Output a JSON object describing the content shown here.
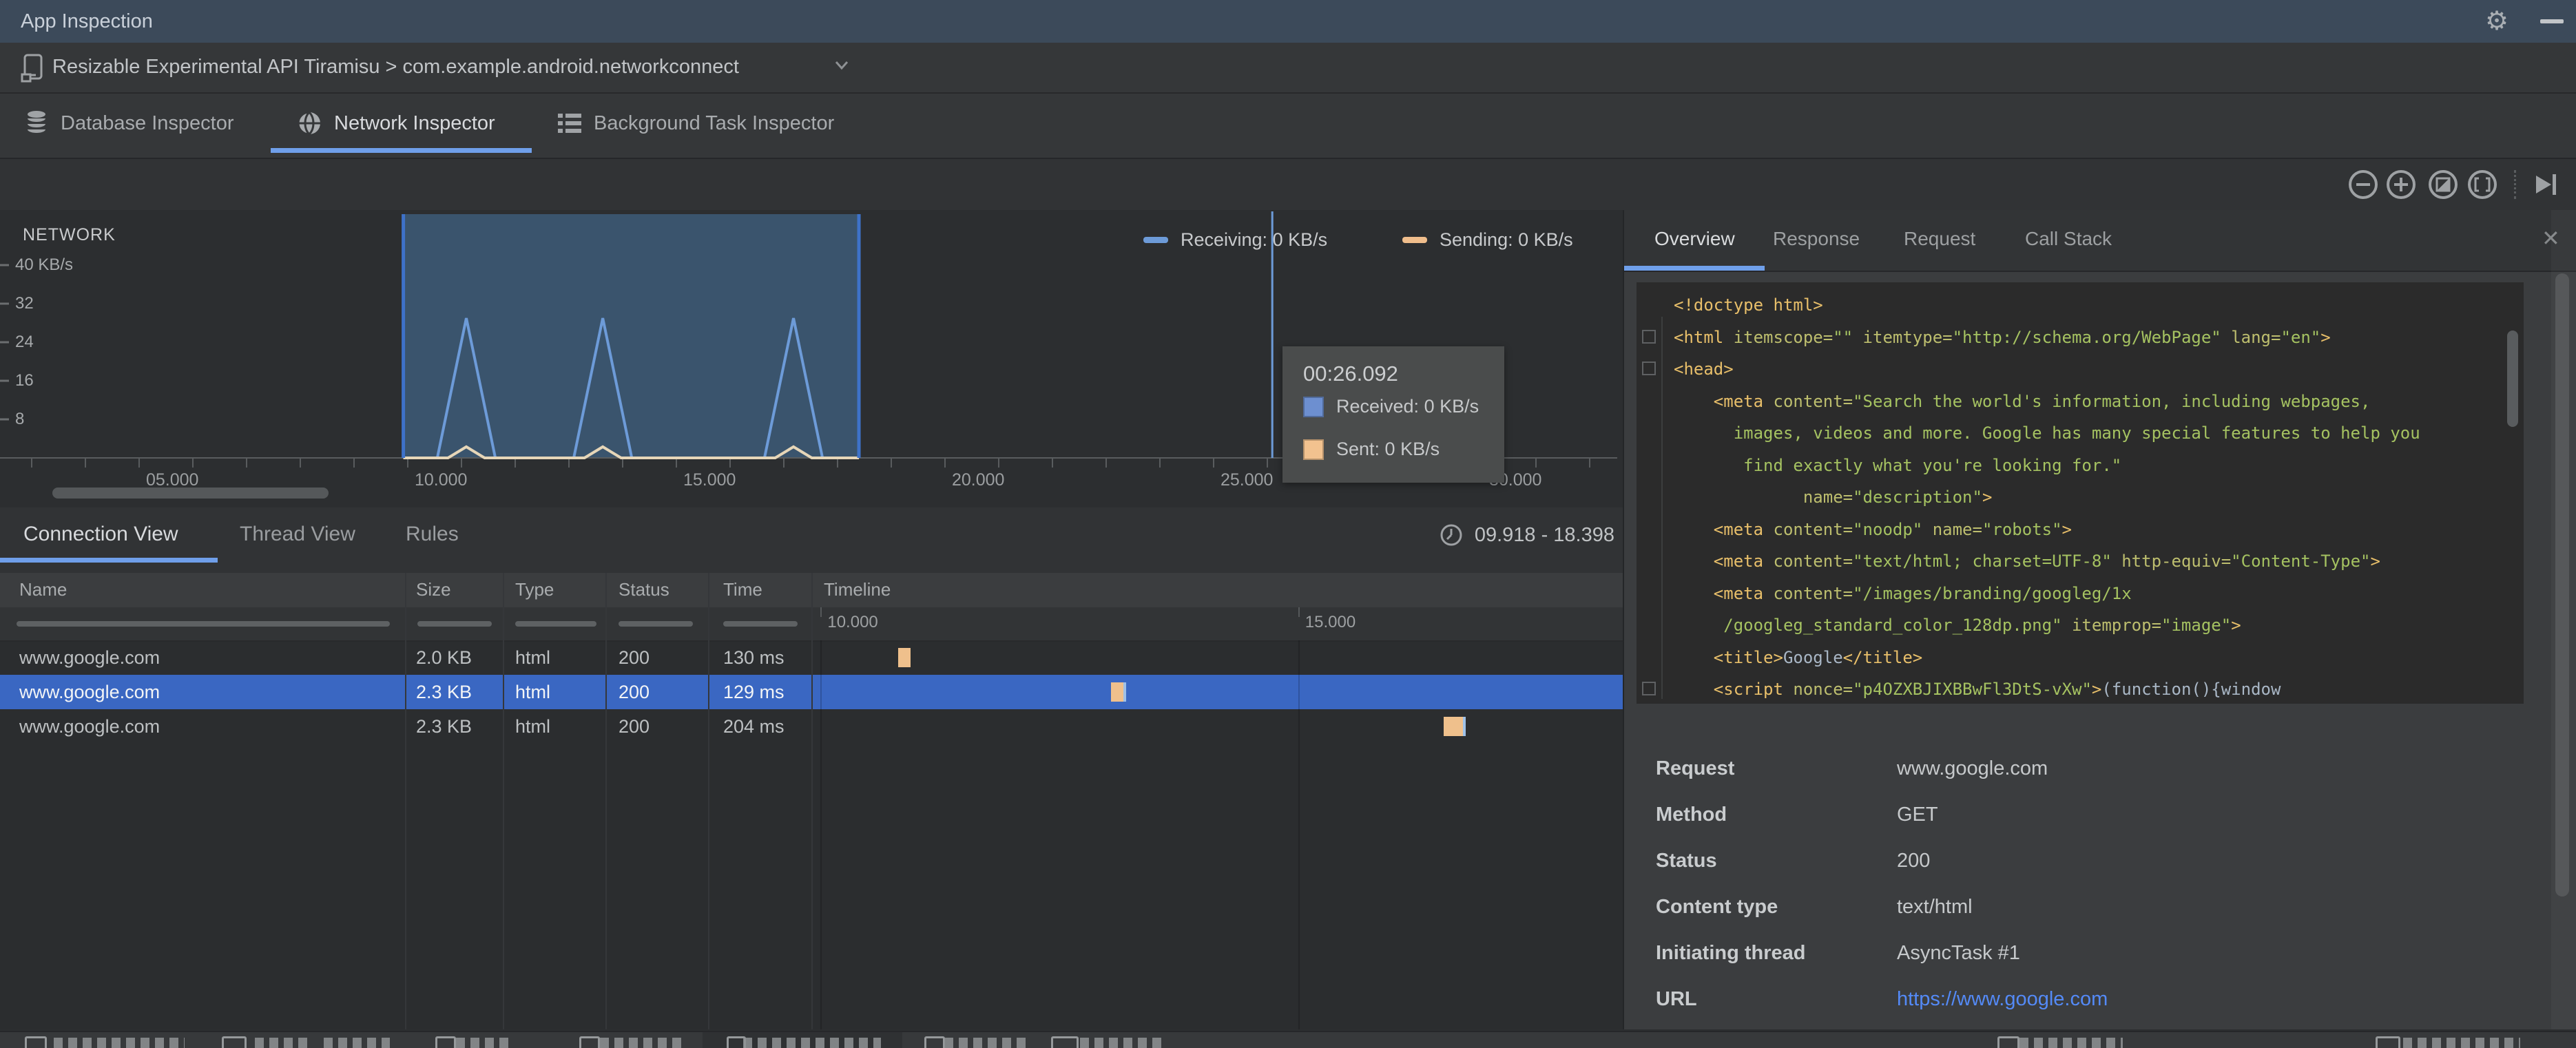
{
  "app": {
    "title": "App Inspection"
  },
  "window_controls": {
    "icons": [
      "gear-icon",
      "minimize-icon"
    ]
  },
  "device_bar": {
    "label": "Resizable Experimental API Tiramisu > com.example.android.networkconnect",
    "icons": [
      "phone-icon",
      "chevron-down-icon"
    ]
  },
  "inspector_tabs": [
    {
      "label": "Database Inspector",
      "icon": "database-icon",
      "active": false
    },
    {
      "label": "Network Inspector",
      "icon": "globe-icon",
      "active": true
    },
    {
      "label": "Background Task Inspector",
      "icon": "list-icon",
      "active": false
    }
  ],
  "toolbar": {
    "icons": [
      "zoom-out",
      "zoom-in",
      "reset-zoom",
      "zoom-to-selection",
      "skip-to-end"
    ]
  },
  "chart_data": {
    "type": "line",
    "title": "NETWORK",
    "ylabel": "KB/s",
    "ylim": [
      0,
      45.9
    ],
    "y_ticks": [
      {
        "value": 40,
        "label": "40 KB/s"
      },
      {
        "value": 32,
        "label": "32"
      },
      {
        "value": 24,
        "label": "24"
      },
      {
        "value": 16,
        "label": "16"
      },
      {
        "value": 8,
        "label": "8"
      }
    ],
    "x_ticks": [
      {
        "time_s": 5,
        "label": "05.000"
      },
      {
        "time_s": 10,
        "label": "10.000"
      },
      {
        "time_s": 15,
        "label": "15.000"
      },
      {
        "time_s": 20,
        "label": "20.000"
      },
      {
        "time_s": 25,
        "label": "25.000"
      },
      {
        "time_s": 30,
        "label": "30.000"
      }
    ],
    "x_minor_tick_interval_s": 1,
    "visible_range_s": [
      2.4,
      32.6
    ],
    "series": [
      {
        "name": "Receiving",
        "color": "#6D9BD8",
        "points": [
          [
            9.918,
            0
          ],
          [
            10.55,
            0
          ],
          [
            11.09,
            29
          ],
          [
            11.63,
            0
          ],
          [
            13.09,
            0
          ],
          [
            13.63,
            29
          ],
          [
            14.17,
            0
          ],
          [
            16.64,
            0
          ],
          [
            17.18,
            29
          ],
          [
            17.72,
            0
          ],
          [
            18.398,
            0
          ]
        ]
      },
      {
        "name": "Sending",
        "color": "#E6D6B8",
        "points": [
          [
            9.918,
            0
          ],
          [
            10.75,
            0
          ],
          [
            11.09,
            2.3
          ],
          [
            11.43,
            0
          ],
          [
            13.29,
            0
          ],
          [
            13.63,
            2.3
          ],
          [
            13.97,
            0
          ],
          [
            16.84,
            0
          ],
          [
            17.18,
            2.3
          ],
          [
            17.52,
            0
          ],
          [
            18.398,
            0
          ]
        ]
      }
    ],
    "legend": {
      "position": "top-right",
      "items": [
        {
          "label": "Receiving: 0 KB/s",
          "color": "#6D9BD8"
        },
        {
          "label": "Sending: 0 KB/s",
          "color": "#F0BE8C"
        }
      ]
    },
    "selection": {
      "start_s": 9.918,
      "end_s": 18.398,
      "fill": "#3A546D",
      "edge": "#3E72C9"
    },
    "hover": {
      "time_s": 26.092,
      "line_color": "#6D9BD8"
    },
    "tooltip": {
      "title": "00:26.092",
      "items": [
        {
          "label": "Received: 0 KB/s",
          "color": "#6D8FD0"
        },
        {
          "label": "Sent: 0 KB/s",
          "color": "#F2C28F"
        }
      ]
    }
  },
  "connection_panel": {
    "tabs": [
      {
        "label": "Connection View",
        "active": true
      },
      {
        "label": "Thread View",
        "active": false
      },
      {
        "label": "Rules",
        "active": false
      }
    ],
    "range_icon": "clock-icon",
    "range_label": "09.918 - 18.398",
    "table": {
      "columns": [
        "Name",
        "Size",
        "Type",
        "Status",
        "Time",
        "Timeline"
      ],
      "timeline_range_s": [
        9.918,
        18.398
      ],
      "timeline_ticks": [
        {
          "label": "10.000",
          "time_s": 10
        },
        {
          "label": "15.000",
          "time_s": 15
        }
      ],
      "marker_color": "#EFC08C",
      "rows": [
        {
          "name": "www.google.com",
          "size": "2.0 KB",
          "type": "html",
          "status": "200",
          "time": "130 ms",
          "selected": false,
          "marker_start_s": 10.81,
          "marker_duration_s": 0.13,
          "marker_tail": false
        },
        {
          "name": "www.google.com",
          "size": "2.3 KB",
          "type": "html",
          "status": "200",
          "time": "129 ms",
          "selected": true,
          "marker_start_s": 13.04,
          "marker_duration_s": 0.129,
          "marker_tail": true
        },
        {
          "name": "www.google.com",
          "size": "2.3 KB",
          "type": "html",
          "status": "200",
          "time": "204 ms",
          "selected": false,
          "marker_start_s": 16.52,
          "marker_duration_s": 0.204,
          "marker_tail": true
        }
      ]
    }
  },
  "details_panel": {
    "tabs": [
      {
        "label": "Overview",
        "active": true
      },
      {
        "label": "Response",
        "active": false
      },
      {
        "label": "Request",
        "active": false
      },
      {
        "label": "Call Stack",
        "active": false
      }
    ],
    "close_icon": "close-icon",
    "code": {
      "lines": [
        [
          [
            "tag",
            "<!doctype html>"
          ]
        ],
        [
          [
            "tag",
            "<html"
          ],
          [
            "attr",
            " itemscope="
          ],
          [
            "str",
            "\"\""
          ],
          [
            "attr",
            " itemtype="
          ],
          [
            "str",
            "\"http://schema.org/WebPage\""
          ],
          [
            "attr",
            " lang="
          ],
          [
            "str",
            "\"en\""
          ],
          [
            "tag",
            ">"
          ]
        ],
        [
          [
            "tag",
            "<head>"
          ]
        ],
        [
          [
            "plain",
            "    "
          ],
          [
            "tag",
            "<meta"
          ],
          [
            "attr",
            " content="
          ],
          [
            "str",
            "\"Search the world's information, including webpages,"
          ]
        ],
        [
          [
            "str",
            "      images, videos and more. Google has many special features to help you"
          ]
        ],
        [
          [
            "str",
            "       find exactly what you're looking for.\""
          ]
        ],
        [
          [
            "plain",
            "             "
          ],
          [
            "attr",
            "name="
          ],
          [
            "str",
            "\"description\""
          ],
          [
            "tag",
            ">"
          ]
        ],
        [
          [
            "plain",
            "    "
          ],
          [
            "tag",
            "<meta"
          ],
          [
            "attr",
            " content="
          ],
          [
            "str",
            "\"noodp\""
          ],
          [
            "attr",
            " name="
          ],
          [
            "str",
            "\"robots\""
          ],
          [
            "tag",
            ">"
          ]
        ],
        [
          [
            "plain",
            "    "
          ],
          [
            "tag",
            "<meta"
          ],
          [
            "attr",
            " content="
          ],
          [
            "str",
            "\"text/html; charset=UTF-8\""
          ],
          [
            "attr",
            " http-equiv="
          ],
          [
            "str",
            "\"Content-Type\""
          ],
          [
            "tag",
            ">"
          ]
        ],
        [
          [
            "plain",
            "    "
          ],
          [
            "tag",
            "<meta"
          ],
          [
            "attr",
            " content="
          ],
          [
            "str",
            "\"/images/branding/googleg/1x"
          ]
        ],
        [
          [
            "str",
            "     /googleg_standard_color_128dp.png\""
          ],
          [
            "attr",
            " itemprop="
          ],
          [
            "str",
            "\"image\""
          ],
          [
            "tag",
            ">"
          ]
        ],
        [
          [
            "plain",
            "    "
          ],
          [
            "tag",
            "<title>"
          ],
          [
            "plain",
            "Google"
          ],
          [
            "tag",
            "</title>"
          ]
        ],
        [
          [
            "plain",
            "    "
          ],
          [
            "tag",
            "<script"
          ],
          [
            "attr",
            " nonce="
          ],
          [
            "str",
            "\"p4OZXBJIXBBwFl3DtS-vXw\""
          ],
          [
            "tag",
            ">"
          ],
          [
            "plain",
            "(function(){window"
          ]
        ]
      ]
    },
    "fields": [
      {
        "label": "Request",
        "value": "www.google.com",
        "link": false
      },
      {
        "label": "Method",
        "value": "GET",
        "link": false
      },
      {
        "label": "Status",
        "value": "200",
        "link": false
      },
      {
        "label": "Content type",
        "value": "text/html",
        "link": false
      },
      {
        "label": "Initiating thread",
        "value": "AsyncTask #1",
        "link": false
      },
      {
        "label": "URL",
        "value": "https://www.google.com",
        "link": true
      }
    ]
  }
}
